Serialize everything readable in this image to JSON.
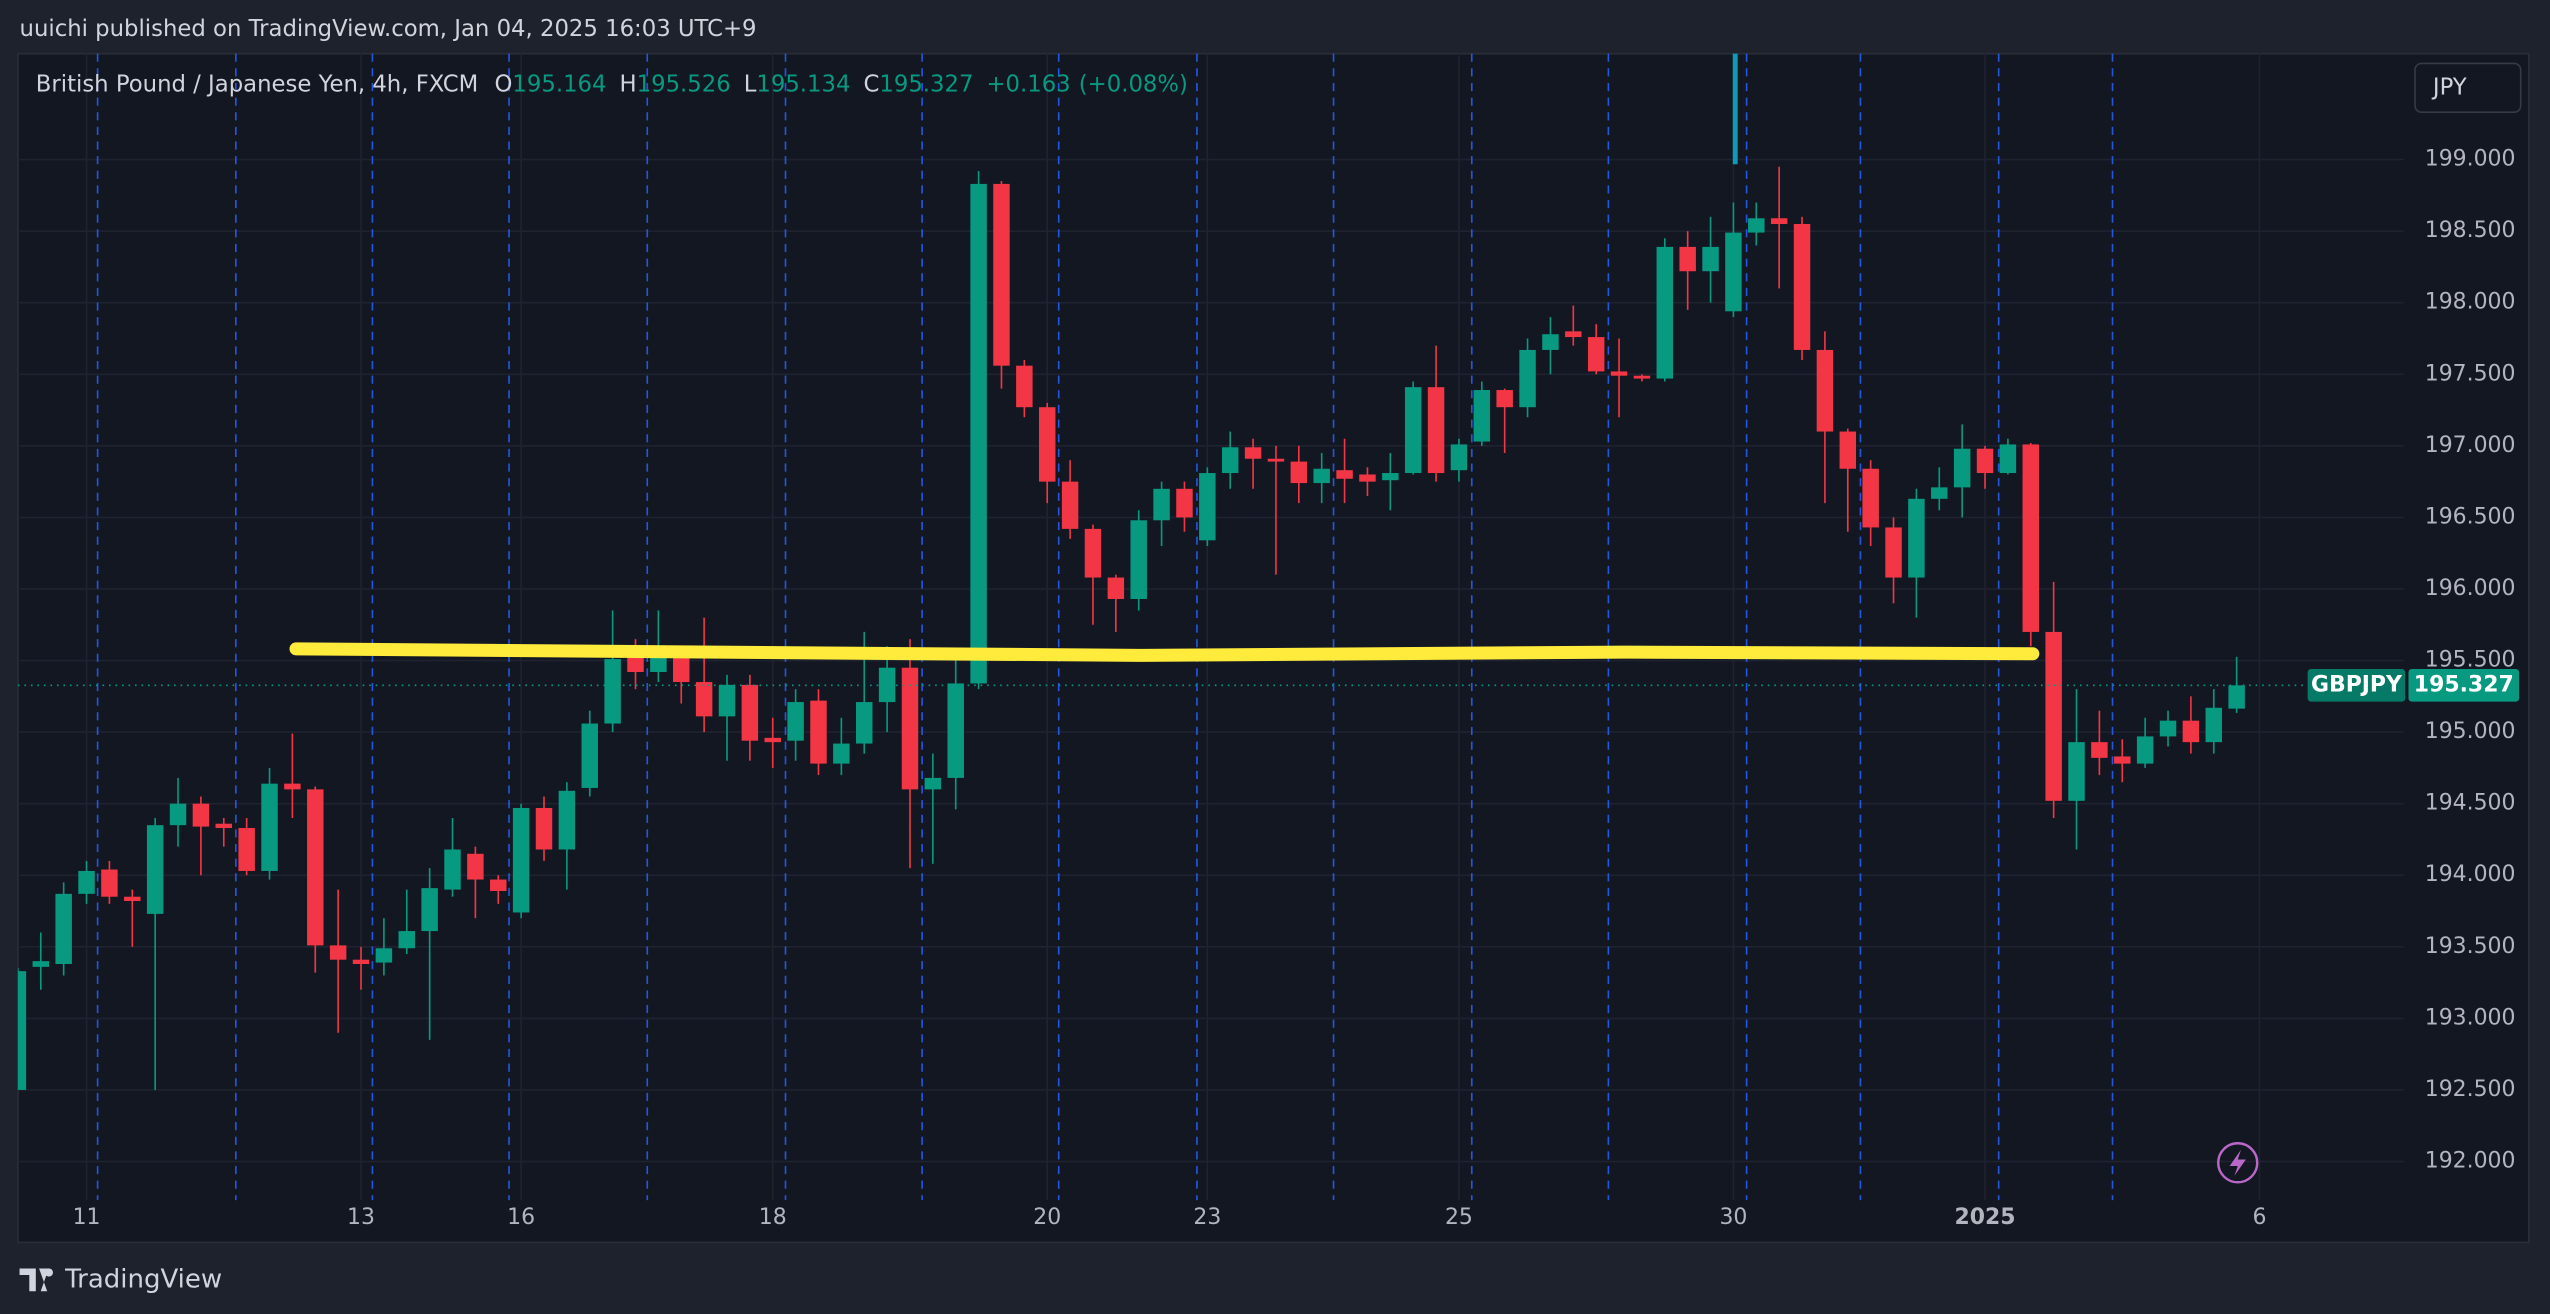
{
  "publisher_line": "uuichi published on TradingView.com, Jan 04, 2025 16:03 UTC+9",
  "currency_button": "JPY",
  "symbol": "GBPJPY",
  "brand": "TradingView",
  "chart_data": {
    "type": "candlestick",
    "title": "British Pound / Japanese Yen, 4h, FXCM",
    "legend_keys": [
      "O",
      "H",
      "L",
      "C"
    ],
    "change": {
      "value": 0.163,
      "label": "+0.163"
    },
    "change_pct": {
      "value": 0.08,
      "label": "(+0.08%)"
    },
    "up_color": "#089981",
    "down_color": "#f23645",
    "open": [
      192.5,
      193.36,
      193.38,
      193.87,
      194.04,
      193.85,
      193.73,
      194.35,
      194.5,
      194.36,
      194.33,
      194.03,
      194.64,
      194.6,
      193.51,
      193.41,
      193.39,
      193.49,
      193.61,
      193.9,
      194.15,
      193.97,
      193.74,
      194.47,
      194.18,
      194.61,
      195.06,
      195.52,
      195.42,
      195.53,
      195.35,
      195.11,
      195.33,
      194.96,
      194.94,
      195.22,
      194.78,
      194.92,
      195.21,
      195.45,
      194.6,
      194.68,
      195.34,
      198.83,
      197.56,
      197.27,
      196.75,
      196.42,
      196.08,
      195.93,
      196.48,
      196.7,
      196.34,
      196.81,
      196.99,
      196.91,
      196.89,
      196.74,
      196.83,
      196.8,
      196.76,
      196.81,
      197.41,
      196.83,
      197.03,
      197.39,
      197.27,
      197.67,
      197.8,
      197.76,
      197.52,
      197.49,
      197.47,
      198.39,
      198.22,
      197.94,
      198.49,
      198.59,
      198.55,
      197.67,
      197.1,
      196.84,
      196.43,
      196.08,
      196.63,
      196.71,
      196.98,
      196.81,
      197.01,
      195.7,
      194.52,
      194.93,
      194.83,
      194.78,
      194.97,
      195.08,
      194.93,
      195.164
    ],
    "high": [
      193.35,
      193.6,
      193.95,
      194.1,
      194.1,
      193.9,
      194.4,
      194.68,
      194.55,
      194.4,
      194.4,
      194.75,
      194.99,
      194.62,
      193.9,
      193.5,
      193.7,
      193.9,
      194.05,
      194.4,
      194.2,
      194.0,
      194.5,
      194.55,
      194.65,
      195.15,
      195.85,
      195.65,
      195.85,
      195.6,
      195.8,
      195.4,
      195.4,
      195.1,
      195.3,
      195.3,
      195.1,
      195.7,
      195.6,
      195.65,
      194.85,
      195.55,
      198.92,
      198.85,
      197.6,
      197.3,
      196.9,
      196.45,
      196.1,
      196.55,
      196.75,
      196.75,
      196.85,
      197.1,
      197.05,
      197.0,
      197.0,
      196.95,
      197.05,
      196.85,
      196.95,
      197.45,
      197.7,
      197.05,
      197.45,
      197.4,
      197.75,
      197.9,
      197.98,
      197.85,
      197.75,
      197.5,
      198.45,
      198.5,
      198.6,
      198.7,
      198.7,
      198.95,
      198.6,
      197.8,
      197.12,
      196.9,
      196.5,
      196.7,
      196.85,
      197.15,
      197.0,
      197.05,
      197.02,
      196.05,
      195.3,
      195.15,
      194.95,
      195.1,
      195.15,
      195.25,
      195.3,
      195.526
    ],
    "low": [
      192.5,
      193.2,
      193.3,
      193.8,
      193.8,
      193.5,
      192.5,
      194.2,
      194.0,
      194.2,
      194.0,
      193.97,
      194.4,
      193.32,
      192.9,
      193.2,
      193.3,
      193.45,
      192.85,
      193.85,
      193.7,
      193.8,
      193.7,
      194.1,
      193.9,
      194.55,
      195.0,
      195.3,
      195.35,
      195.2,
      195.0,
      194.8,
      194.8,
      194.75,
      194.8,
      194.7,
      194.7,
      194.85,
      195.0,
      194.05,
      194.08,
      194.46,
      195.3,
      197.4,
      197.2,
      196.6,
      196.35,
      195.75,
      195.7,
      195.85,
      196.3,
      196.4,
      196.3,
      196.7,
      196.7,
      196.1,
      196.6,
      196.6,
      196.6,
      196.65,
      196.55,
      196.8,
      196.75,
      196.75,
      197.0,
      196.95,
      197.2,
      197.5,
      197.7,
      197.5,
      197.2,
      197.45,
      197.45,
      197.95,
      198.0,
      197.9,
      198.4,
      198.1,
      197.6,
      196.6,
      196.4,
      196.3,
      195.9,
      195.8,
      196.55,
      196.5,
      196.7,
      196.8,
      195.6,
      194.4,
      194.18,
      194.7,
      194.65,
      194.75,
      194.9,
      194.85,
      194.85,
      195.134
    ],
    "close": [
      193.33,
      193.4,
      193.87,
      194.03,
      193.85,
      193.82,
      194.35,
      194.5,
      194.34,
      194.33,
      194.03,
      194.64,
      194.6,
      193.51,
      193.41,
      193.38,
      193.49,
      193.61,
      193.91,
      194.18,
      193.97,
      193.89,
      194.47,
      194.18,
      194.59,
      195.06,
      195.51,
      195.42,
      195.53,
      195.35,
      195.11,
      195.33,
      194.94,
      194.93,
      195.21,
      194.78,
      194.92,
      195.21,
      195.45,
      194.6,
      194.68,
      195.34,
      198.83,
      197.56,
      197.27,
      196.75,
      196.42,
      196.08,
      195.93,
      196.48,
      196.7,
      196.5,
      196.81,
      196.99,
      196.91,
      196.89,
      196.74,
      196.84,
      196.77,
      196.75,
      196.81,
      197.41,
      196.81,
      197.01,
      197.39,
      197.27,
      197.67,
      197.78,
      197.76,
      197.52,
      197.49,
      197.47,
      198.39,
      198.22,
      198.39,
      198.49,
      198.59,
      198.55,
      197.67,
      197.1,
      196.84,
      196.43,
      196.08,
      196.63,
      196.71,
      196.98,
      196.81,
      197.01,
      195.7,
      194.52,
      194.93,
      194.82,
      194.78,
      194.97,
      195.08,
      194.93,
      195.17,
      195.327
    ],
    "ylim": [
      191.73,
      199.74
    ],
    "yticks": [
      {
        "value": 192,
        "label": "192.000"
      },
      {
        "value": 192.5,
        "label": "192.500"
      },
      {
        "value": 193,
        "label": "193.000"
      },
      {
        "value": 193.5,
        "label": "193.500"
      },
      {
        "value": 194,
        "label": "194.000"
      },
      {
        "value": 194.5,
        "label": "194.500"
      },
      {
        "value": 195,
        "label": "195.000"
      },
      {
        "value": 195.5,
        "label": "195.500"
      },
      {
        "value": 196,
        "label": "196.000"
      },
      {
        "value": 196.5,
        "label": "196.500"
      },
      {
        "value": 197,
        "label": "197.000"
      },
      {
        "value": 197.5,
        "label": "197.500"
      },
      {
        "value": 198,
        "label": "198.000"
      },
      {
        "value": 198.5,
        "label": "198.500"
      },
      {
        "value": 199,
        "label": "199.000"
      }
    ],
    "xlim": [
      0,
      104.3
    ],
    "xticks": [
      {
        "value": 3,
        "label": "11"
      },
      {
        "value": 15,
        "label": "13"
      },
      {
        "value": 22,
        "label": "16"
      },
      {
        "value": 33,
        "label": "18"
      },
      {
        "value": 45,
        "label": "20"
      },
      {
        "value": 52,
        "label": "23"
      },
      {
        "value": 63,
        "label": "25"
      },
      {
        "value": 75,
        "label": "30"
      },
      {
        "value": 86,
        "label": "2025"
      },
      {
        "value": 98,
        "label": "6"
      }
    ],
    "grid": true
  }
}
